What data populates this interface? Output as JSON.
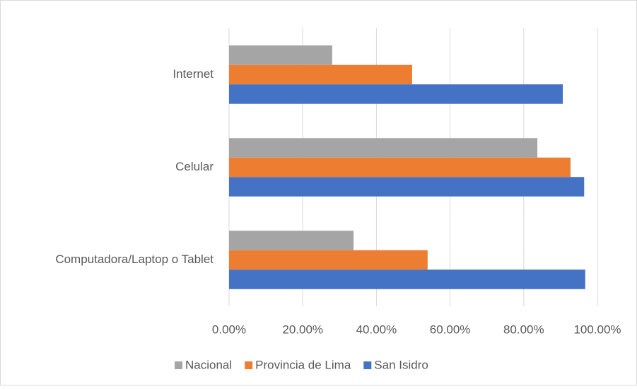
{
  "chart_data": {
    "type": "hbar",
    "categories": [
      "Internet",
      "Celular",
      "Computadora/Laptop o Tablet"
    ],
    "series": [
      {
        "name": "Nacional",
        "color": "#a5a5a5",
        "values": [
          28.0,
          83.7,
          33.8
        ]
      },
      {
        "name": "Provincia de Lima",
        "color": "#ed7d31",
        "values": [
          49.7,
          92.7,
          53.9
        ]
      },
      {
        "name": "San Isidro",
        "color": "#4472c4",
        "values": [
          90.6,
          96.4,
          96.7
        ]
      }
    ],
    "xlim": [
      0,
      100
    ],
    "xticks": [
      {
        "value": 0,
        "label": "0.00%"
      },
      {
        "value": 20,
        "label": "20.00%"
      },
      {
        "value": 40,
        "label": "40.00%"
      },
      {
        "value": 60,
        "label": "60.00%"
      },
      {
        "value": 80,
        "label": "80.00%"
      },
      {
        "value": 100,
        "label": "100.00%"
      }
    ],
    "grid": true,
    "legend": "bottom"
  }
}
